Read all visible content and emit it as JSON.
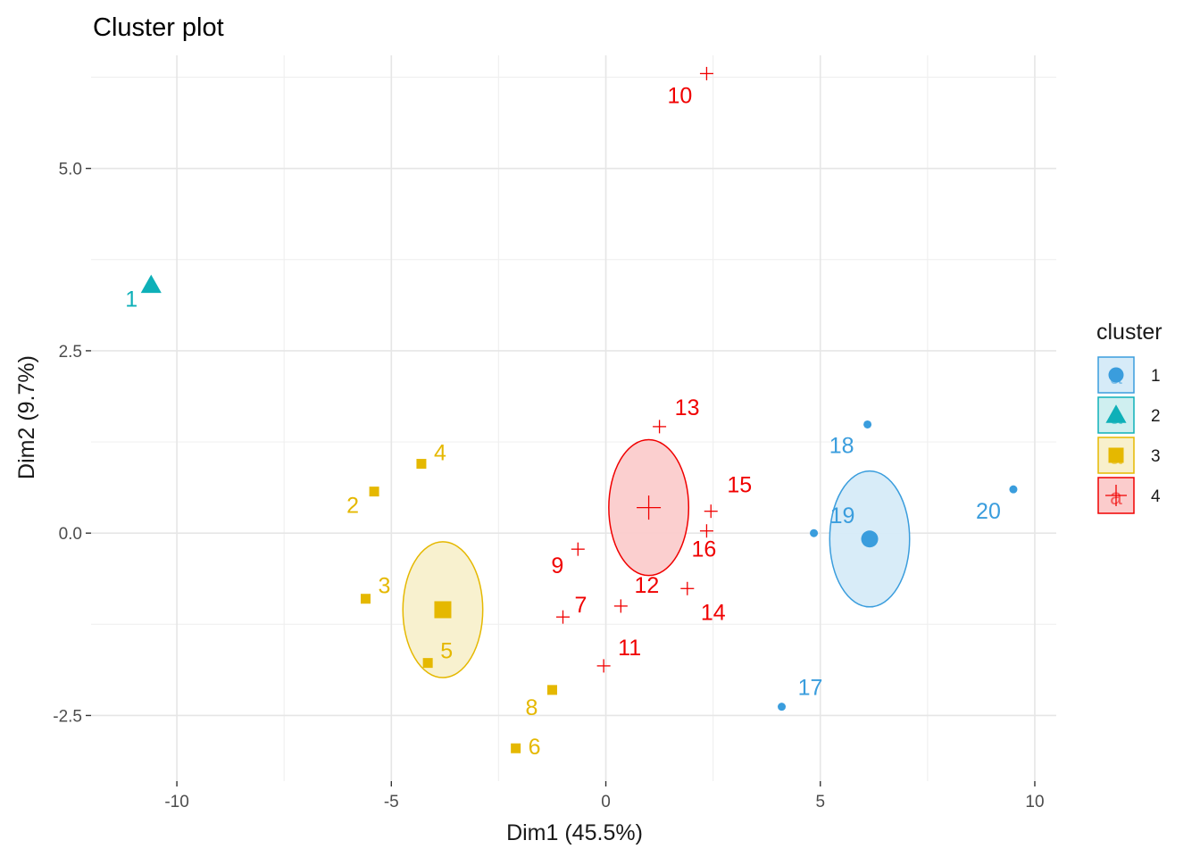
{
  "chart_data": {
    "type": "scatter",
    "title": "Cluster plot",
    "xlabel": "Dim1 (45.5%)",
    "ylabel": "Dim2 (9.7%)",
    "xlim": [
      -12,
      10.5
    ],
    "ylim": [
      -3.4,
      6.55
    ],
    "x_ticks": [
      -10,
      -5,
      0,
      5,
      10
    ],
    "x_tick_labels": [
      "-10",
      "-5",
      "0",
      "5",
      "10"
    ],
    "y_ticks": [
      -2.5,
      0.0,
      2.5,
      5.0
    ],
    "y_tick_labels": [
      "-2.5",
      "0.0",
      "2.5",
      "5.0"
    ],
    "grid": true,
    "legend": {
      "title": "cluster",
      "position": "right",
      "entries": [
        {
          "label": "1",
          "cluster": 1
        },
        {
          "label": "2",
          "cluster": 2
        },
        {
          "label": "3",
          "cluster": 3
        },
        {
          "label": "4",
          "cluster": 4
        }
      ],
      "key_glyph_text": "a"
    },
    "clusters": [
      {
        "id": 1,
        "color": "#3a9ddd",
        "fill": "#d6ebf8",
        "shape": "circle",
        "center": [
          6.15,
          -0.08
        ],
        "ellipse_radius": [
          0.95,
          0.95
        ]
      },
      {
        "id": 2,
        "color": "#0eb0b8",
        "fill": "#cfeff0",
        "shape": "triangle",
        "center": null,
        "ellipse_radius": null
      },
      {
        "id": 3,
        "color": "#e5b800",
        "fill": "#f8f0cc",
        "shape": "square",
        "center": [
          -3.8,
          -1.05
        ],
        "ellipse_radius": [
          0.95,
          0.95
        ]
      },
      {
        "id": 4,
        "color": "#f00000",
        "fill": "#fbcccc",
        "shape": "cross",
        "center": [
          1.0,
          0.35
        ],
        "ellipse_radius": [
          0.95,
          0.95
        ]
      }
    ],
    "points": [
      {
        "label": "1",
        "cluster": 2,
        "x": -10.6,
        "y": 3.4
      },
      {
        "label": "2",
        "cluster": 3,
        "x": -5.4,
        "y": 0.57
      },
      {
        "label": "3",
        "cluster": 3,
        "x": -5.6,
        "y": -0.9
      },
      {
        "label": "4",
        "cluster": 3,
        "x": -4.3,
        "y": 0.95
      },
      {
        "label": "5",
        "cluster": 3,
        "x": -4.15,
        "y": -1.78
      },
      {
        "label": "6",
        "cluster": 3,
        "x": -2.1,
        "y": -2.95
      },
      {
        "label": "7",
        "cluster": 4,
        "x": -1.0,
        "y": -1.15
      },
      {
        "label": "8",
        "cluster": 3,
        "x": -1.25,
        "y": -2.15
      },
      {
        "label": "9",
        "cluster": 4,
        "x": -0.65,
        "y": -0.22
      },
      {
        "label": "10",
        "cluster": 4,
        "x": 2.35,
        "y": 6.3
      },
      {
        "label": "11",
        "cluster": 4,
        "x": -0.05,
        "y": -1.82
      },
      {
        "label": "12",
        "cluster": 4,
        "x": 0.35,
        "y": -1.0
      },
      {
        "label": "13",
        "cluster": 4,
        "x": 1.25,
        "y": 1.46
      },
      {
        "label": "14",
        "cluster": 4,
        "x": 1.9,
        "y": -0.76
      },
      {
        "label": "15",
        "cluster": 4,
        "x": 2.45,
        "y": 0.3
      },
      {
        "label": "16",
        "cluster": 4,
        "x": 2.35,
        "y": 0.03
      },
      {
        "label": "17",
        "cluster": 1,
        "x": 4.1,
        "y": -2.38
      },
      {
        "label": "18",
        "cluster": 1,
        "x": 6.1,
        "y": 1.49
      },
      {
        "label": "19",
        "cluster": 1,
        "x": 4.85,
        "y": 0.0
      },
      {
        "label": "20",
        "cluster": 1,
        "x": 9.5,
        "y": 0.6
      }
    ]
  }
}
